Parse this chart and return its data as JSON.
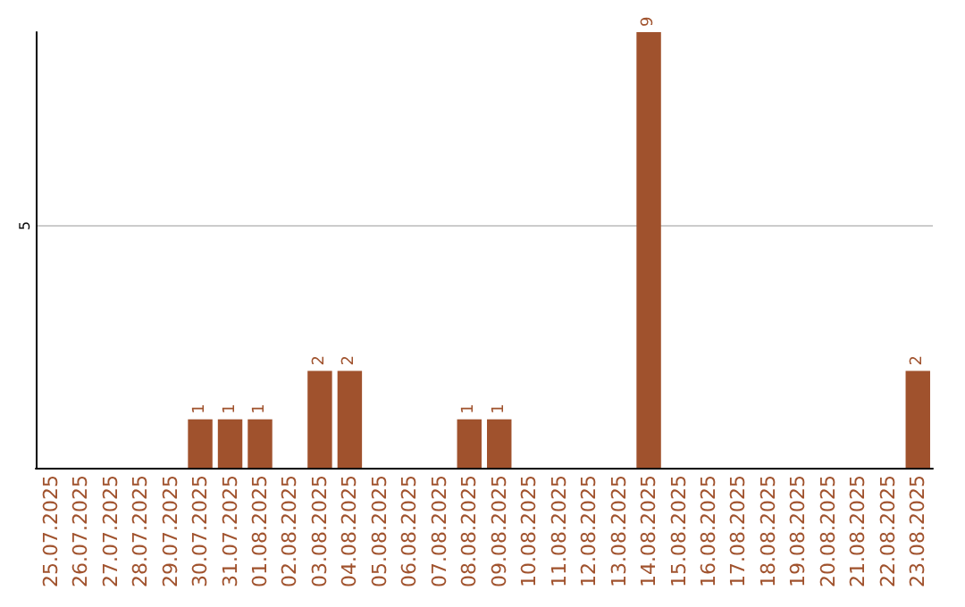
{
  "chart_data": {
    "type": "bar",
    "categories": [
      "25.07.2025",
      "26.07.2025",
      "27.07.2025",
      "28.07.2025",
      "29.07.2025",
      "30.07.2025",
      "31.07.2025",
      "01.08.2025",
      "02.08.2025",
      "03.08.2025",
      "04.08.2025",
      "05.08.2025",
      "06.08.2025",
      "07.08.2025",
      "08.08.2025",
      "09.08.2025",
      "10.08.2025",
      "11.08.2025",
      "12.08.2025",
      "13.08.2025",
      "14.08.2025",
      "15.08.2025",
      "16.08.2025",
      "17.08.2025",
      "18.08.2025",
      "19.08.2025",
      "20.08.2025",
      "21.08.2025",
      "22.08.2025",
      "23.08.2025"
    ],
    "values": [
      0,
      0,
      0,
      0,
      0,
      1,
      1,
      1,
      0,
      2,
      2,
      0,
      0,
      0,
      1,
      1,
      0,
      0,
      0,
      0,
      9,
      0,
      0,
      0,
      0,
      0,
      0,
      0,
      0,
      2
    ],
    "value_labels": [
      null,
      null,
      null,
      null,
      null,
      "1",
      "1",
      "1",
      null,
      "2",
      "2",
      null,
      null,
      null,
      "1",
      "1",
      null,
      null,
      null,
      null,
      "9",
      null,
      null,
      null,
      null,
      null,
      null,
      null,
      null,
      "2"
    ],
    "color": "#a0522d",
    "ylim": [
      0,
      9
    ],
    "yticks": [
      5
    ],
    "grid": "y"
  }
}
